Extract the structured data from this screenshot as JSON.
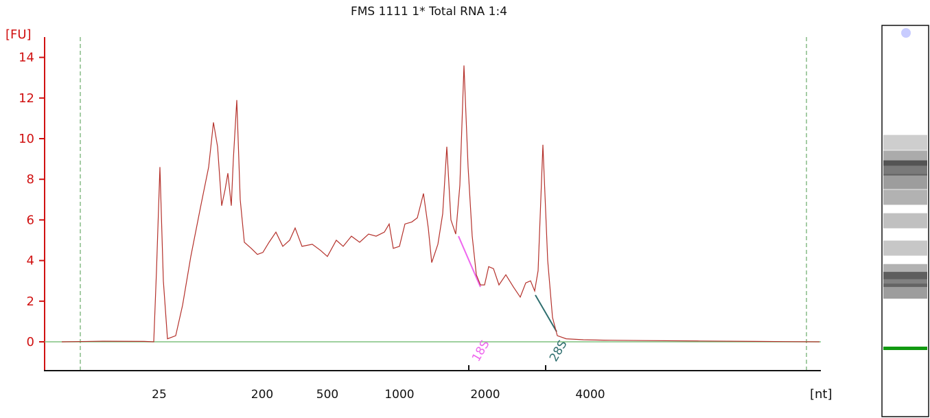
{
  "chart_data": {
    "type": "line",
    "title": "FMS 1111 1* Total RNA 1:4",
    "ylabel": "[FU]",
    "xlabel": "[nt]",
    "ylim": [
      -1.3,
      15
    ],
    "yticks": [
      0,
      2,
      4,
      6,
      8,
      10,
      12,
      14
    ],
    "xticks": [
      "25",
      "200",
      "500",
      "1000",
      "2000",
      "4000"
    ],
    "grid": false,
    "legend": "none",
    "colors": {
      "axis": "#d01010",
      "trace": "#b4302a",
      "baseline": "#7fc07f",
      "marker_lines": "#4a9a4a",
      "rRNA_18S": "#ee66ee",
      "rRNA_28S": "#2e6e6e",
      "gel_band": "#119911"
    },
    "annotations": [
      {
        "label": "18S",
        "x": "2000",
        "area_start": 5.2,
        "area_end": 2.7,
        "color": "#ee66ee"
      },
      {
        "label": "28S",
        "x": "4000",
        "area_start": 2.3,
        "area_end": 0.5,
        "color": "#2e6e6e"
      }
    ],
    "series": [
      {
        "x": [
          "",
          "",
          "",
          "25",
          "25",
          "25",
          "25",
          "25",
          "",
          "",
          "",
          "",
          "",
          "",
          "",
          "",
          "",
          "",
          "",
          "",
          "200",
          "",
          "",
          "",
          "",
          "",
          "",
          "500",
          "",
          "",
          "",
          "",
          "",
          "",
          "",
          "",
          "",
          "1000",
          "",
          "",
          "",
          "",
          "",
          "",
          "",
          "",
          "",
          "",
          "2000",
          "",
          "",
          "",
          "",
          "",
          "",
          "",
          "",
          "",
          "",
          "",
          "",
          "",
          "",
          "4000",
          "",
          "",
          ""
        ],
        "points": [
          [
            90,
            0.0
          ],
          [
            150,
            0.03
          ],
          [
            210,
            0.02
          ],
          [
            224,
            0.0
          ],
          [
            228,
            3.5
          ],
          [
            233,
            8.6
          ],
          [
            238,
            3.0
          ],
          [
            244,
            0.15
          ],
          [
            256,
            0.3
          ],
          [
            266,
            1.8
          ],
          [
            278,
            4.2
          ],
          [
            292,
            6.6
          ],
          [
            304,
            8.6
          ],
          [
            311,
            10.8
          ],
          [
            317,
            9.6
          ],
          [
            323,
            6.7
          ],
          [
            328,
            7.5
          ],
          [
            332,
            8.3
          ],
          [
            337,
            6.7
          ],
          [
            340,
            9.0
          ],
          [
            345,
            11.9
          ],
          [
            350,
            7.0
          ],
          [
            356,
            4.9
          ],
          [
            366,
            4.6
          ],
          [
            375,
            4.3
          ],
          [
            383,
            4.4
          ],
          [
            392,
            4.9
          ],
          [
            402,
            5.4
          ],
          [
            412,
            4.7
          ],
          [
            422,
            5.0
          ],
          [
            430,
            5.6
          ],
          [
            440,
            4.7
          ],
          [
            455,
            4.8
          ],
          [
            467,
            4.5
          ],
          [
            477,
            4.2
          ],
          [
            490,
            5.0
          ],
          [
            500,
            4.7
          ],
          [
            512,
            5.2
          ],
          [
            524,
            4.9
          ],
          [
            537,
            5.3
          ],
          [
            548,
            5.2
          ],
          [
            560,
            5.4
          ],
          [
            567,
            5.8
          ],
          [
            573,
            4.6
          ],
          [
            582,
            4.7
          ],
          [
            590,
            5.8
          ],
          [
            600,
            5.9
          ],
          [
            608,
            6.1
          ],
          [
            617,
            7.3
          ],
          [
            624,
            5.6
          ],
          [
            629,
            3.9
          ],
          [
            638,
            4.8
          ],
          [
            645,
            6.3
          ],
          [
            651,
            9.6
          ],
          [
            657,
            6.0
          ],
          [
            664,
            5.3
          ],
          [
            670,
            7.7
          ],
          [
            676,
            13.6
          ],
          [
            682,
            8.6
          ],
          [
            688,
            5.2
          ],
          [
            694,
            3.3
          ],
          [
            700,
            2.8
          ],
          [
            706,
            2.8
          ],
          [
            712,
            3.7
          ],
          [
            719,
            3.6
          ],
          [
            727,
            2.8
          ],
          [
            737,
            3.3
          ],
          [
            748,
            2.7
          ],
          [
            758,
            2.2
          ],
          [
            766,
            2.9
          ],
          [
            773,
            3.0
          ],
          [
            779,
            2.5
          ],
          [
            784,
            3.5
          ],
          [
            791,
            9.7
          ],
          [
            798,
            4.0
          ],
          [
            805,
            1.2
          ],
          [
            812,
            0.3
          ],
          [
            825,
            0.15
          ],
          [
            850,
            0.1
          ],
          [
            880,
            0.08
          ],
          [
            940,
            0.06
          ],
          [
            1020,
            0.04
          ],
          [
            1100,
            0.02
          ],
          [
            1194,
            0.0
          ]
        ]
      }
    ]
  },
  "gel": {
    "bands": [
      {
        "pos": 0.28,
        "intensity": 0.35
      },
      {
        "pos": 0.32,
        "intensity": 0.6
      },
      {
        "pos": 0.345,
        "intensity": 0.95
      },
      {
        "pos": 0.38,
        "intensity": 0.7
      },
      {
        "pos": 0.42,
        "intensity": 0.55
      },
      {
        "pos": 0.48,
        "intensity": 0.45
      },
      {
        "pos": 0.55,
        "intensity": 0.4
      },
      {
        "pos": 0.61,
        "intensity": 0.55
      },
      {
        "pos": 0.63,
        "intensity": 0.9
      },
      {
        "pos": 0.66,
        "intensity": 0.7
      }
    ]
  }
}
